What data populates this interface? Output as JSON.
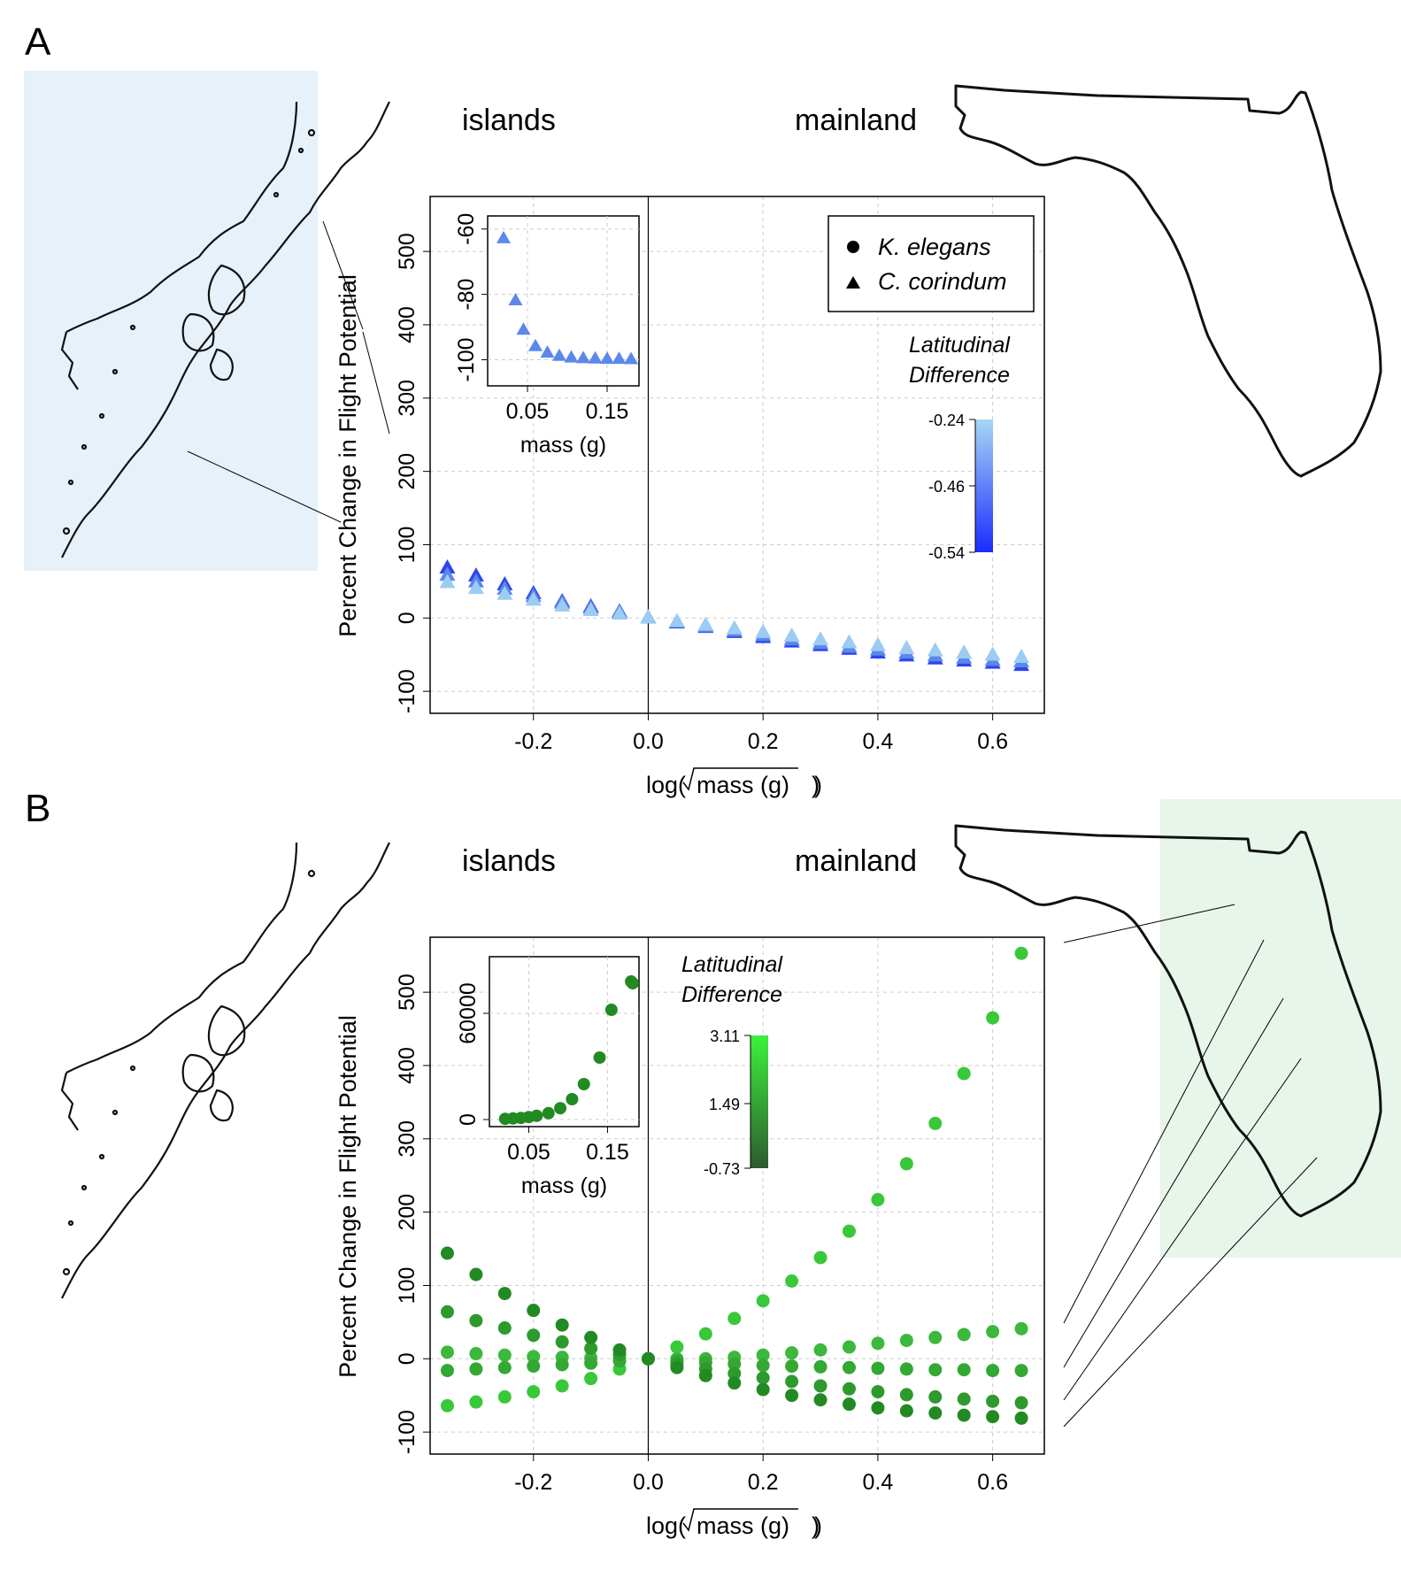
{
  "panels": [
    {
      "letter": "A",
      "region_left": "islands",
      "region_right": "mainland",
      "highlight_color": "#e6f1fa",
      "xlabel_prefix": "log(",
      "xlabel_inner": "mass (g)",
      "xlabel_suffix": ")",
      "ylabel": "Percent Change in Flight Potential",
      "legend": [
        {
          "symbol": "circle",
          "label": "K. elegans"
        },
        {
          "symbol": "triangle",
          "label": "C. corindum"
        }
      ],
      "colorbar": {
        "title_line1": "Latitudinal",
        "title_line2": "Difference",
        "ticks": [
          "-0.24",
          "-0.46",
          "-0.54"
        ],
        "color_top": "#a8d6f5",
        "color_bottom": "#1a2cff"
      }
    },
    {
      "letter": "B",
      "region_left": "islands",
      "region_right": "mainland",
      "highlight_color": "#e7f5ea",
      "xlabel_prefix": "log(",
      "xlabel_inner": "mass (g)",
      "xlabel_suffix": ")",
      "ylabel": "Percent Change in Flight Potential",
      "colorbar": {
        "title_line1": "Latitudinal",
        "title_line2": "Difference",
        "ticks": [
          "3.11",
          "1.49",
          "-0.73"
        ],
        "color_top": "#3cf23c",
        "color_bottom": "#2e5a2e"
      }
    }
  ],
  "chart_data": [
    {
      "type": "scatter",
      "panel": "A",
      "marker": "triangle",
      "xlim": [
        -0.38,
        0.69
      ],
      "ylim": [
        -130,
        575
      ],
      "xticks": [
        -0.2,
        0.0,
        0.2,
        0.4,
        0.6
      ],
      "xtick_labels": [
        "-0.2",
        "0.0",
        "0.2",
        "0.4",
        "0.6"
      ],
      "yticks": [
        -100,
        0,
        100,
        200,
        300,
        400,
        500
      ],
      "ytick_labels": [
        "-100",
        "0",
        "100",
        "200",
        "300",
        "400",
        "500"
      ],
      "grid": true,
      "x": [
        -0.35,
        -0.3,
        -0.25,
        -0.2,
        -0.15,
        -0.1,
        -0.05,
        0.0,
        0.05,
        0.1,
        0.15,
        0.2,
        0.25,
        0.3,
        0.35,
        0.4,
        0.45,
        0.5,
        0.55,
        0.6,
        0.65
      ],
      "series": [
        {
          "color": "#2f44f0",
          "values": [
            68,
            57,
            45,
            33,
            22,
            15,
            8,
            0,
            -7,
            -13,
            -20,
            -27,
            -33,
            -38,
            -43,
            -48,
            -52,
            -56,
            -59,
            -62,
            -65
          ]
        },
        {
          "color": "#5b88ea",
          "values": [
            58,
            49,
            39,
            29,
            20,
            13,
            7,
            0,
            -6,
            -12,
            -18,
            -24,
            -30,
            -35,
            -40,
            -44,
            -48,
            -52,
            -55,
            -58,
            -60
          ]
        },
        {
          "color": "#9ccbf3",
          "values": [
            48,
            40,
            32,
            24,
            16,
            10,
            5,
            0,
            -5,
            -10,
            -15,
            -20,
            -25,
            -30,
            -34,
            -38,
            -42,
            -45,
            -48,
            -51,
            -54
          ]
        }
      ],
      "inset": {
        "type": "scatter",
        "marker": "triangle",
        "xlabel": "mass (g)",
        "xlim": [
          0.0,
          0.19
        ],
        "ylim": [
          -108,
          -56
        ],
        "xticks": [
          0.05,
          0.15
        ],
        "xtick_labels": [
          "0.05",
          "0.15"
        ],
        "yticks": [
          -100,
          -80,
          -60
        ],
        "ytick_labels": [
          "-100",
          "-80",
          "-60"
        ],
        "color": "#5b88ea",
        "x": [
          0.02,
          0.035,
          0.045,
          0.06,
          0.075,
          0.09,
          0.105,
          0.12,
          0.135,
          0.15,
          0.165,
          0.18
        ],
        "y": [
          -63,
          -82,
          -91,
          -96,
          -98,
          -99,
          -99.5,
          -99.7,
          -99.8,
          -99.9,
          -99.9,
          -100
        ]
      }
    },
    {
      "type": "scatter",
      "panel": "B",
      "marker": "circle",
      "xlim": [
        -0.38,
        0.69
      ],
      "ylim": [
        -130,
        575
      ],
      "xticks": [
        -0.2,
        0.0,
        0.2,
        0.4,
        0.6
      ],
      "xtick_labels": [
        "-0.2",
        "0.0",
        "0.2",
        "0.4",
        "0.6"
      ],
      "yticks": [
        -100,
        0,
        100,
        200,
        300,
        400,
        500
      ],
      "ytick_labels": [
        "-100",
        "0",
        "100",
        "200",
        "300",
        "400",
        "500"
      ],
      "grid": true,
      "x": [
        -0.35,
        -0.3,
        -0.25,
        -0.2,
        -0.15,
        -0.1,
        -0.05,
        0.0,
        0.05,
        0.1,
        0.15,
        0.2,
        0.25,
        0.3,
        0.35,
        0.4,
        0.45,
        0.5,
        0.55,
        0.6,
        0.65
      ],
      "series": [
        {
          "color": "#39c839",
          "values": [
            -64,
            -59,
            -52,
            -45,
            -37,
            -27,
            -14,
            0,
            16,
            34,
            55,
            79,
            106,
            138,
            174,
            217,
            266,
            321,
            389,
            465,
            553
          ]
        },
        {
          "color": "#3cb83c",
          "values": [
            9,
            7,
            5,
            3,
            2,
            1,
            0,
            0,
            0,
            0,
            2,
            5,
            8,
            12,
            16,
            21,
            25,
            29,
            33,
            37,
            41
          ]
        },
        {
          "color": "#33a833",
          "values": [
            -16,
            -14,
            -12,
            -10,
            -8,
            -6,
            -3,
            0,
            -3,
            -5,
            -7,
            -9,
            -10,
            -11,
            -12,
            -13,
            -14,
            -15,
            -15,
            -16,
            -16
          ]
        },
        {
          "color": "#2e9a2e",
          "values": [
            64,
            52,
            42,
            32,
            23,
            14,
            6,
            0,
            -7,
            -14,
            -20,
            -26,
            -31,
            -37,
            -41,
            -45,
            -49,
            -52,
            -55,
            -58,
            -60
          ]
        },
        {
          "color": "#228a22",
          "values": [
            144,
            115,
            89,
            66,
            46,
            29,
            12,
            0,
            -12,
            -23,
            -33,
            -42,
            -50,
            -56,
            -62,
            -67,
            -71,
            -74,
            -77,
            -79,
            -81
          ]
        }
      ],
      "inset": {
        "type": "scatter",
        "marker": "circle",
        "xlabel": "mass (g)",
        "xlim": [
          0.0,
          0.19
        ],
        "ylim": [
          -4000,
          92000
        ],
        "xticks": [
          0.05,
          0.15
        ],
        "xtick_labels": [
          "0.05",
          "0.15"
        ],
        "yticks": [
          0,
          60000
        ],
        "ytick_labels": [
          "0",
          "60000"
        ],
        "color": "#228a22",
        "x": [
          0.02,
          0.03,
          0.04,
          0.05,
          0.06,
          0.075,
          0.09,
          0.105,
          0.12,
          0.14,
          0.155,
          0.18,
          0.182
        ],
        "y": [
          400,
          600,
          900,
          1400,
          2100,
          3600,
          6400,
          11500,
          20000,
          35000,
          62000,
          78000,
          77000
        ]
      }
    }
  ]
}
